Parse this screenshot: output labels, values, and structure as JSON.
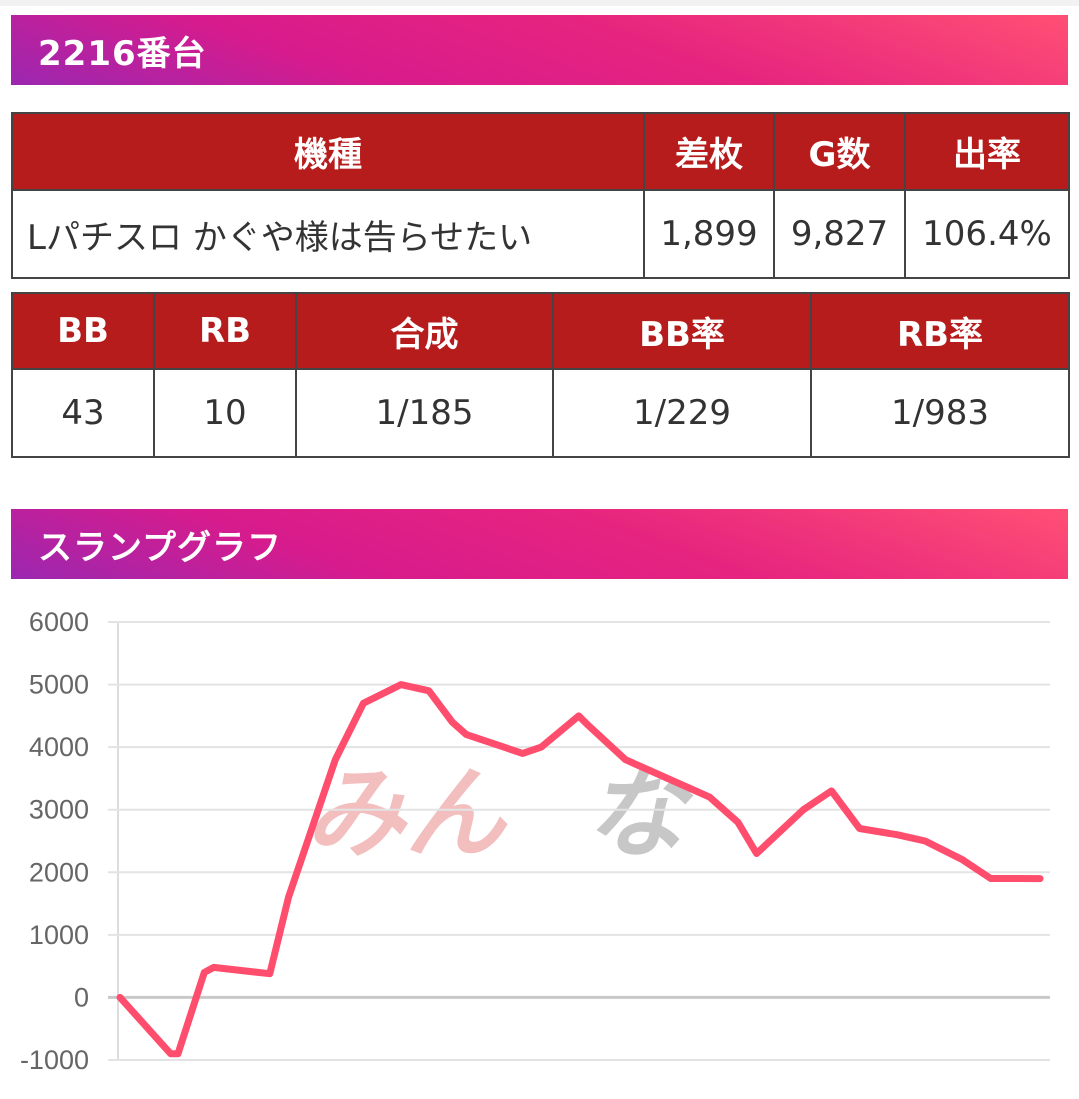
{
  "machine_section": {
    "title": "2216番台"
  },
  "summary_table": {
    "headers": [
      "機種",
      "差枚",
      "G数",
      "出率"
    ],
    "row": [
      "Lパチスロ かぐや様は告らせたい",
      "1,899",
      "9,827",
      "106.4%"
    ]
  },
  "bonus_table": {
    "headers": [
      "BB",
      "RB",
      "合成",
      "BB率",
      "RB率"
    ],
    "row": [
      "43",
      "10",
      "1/185",
      "1/229",
      "1/983"
    ]
  },
  "graph_section": {
    "title": "スランプグラフ",
    "watermark_left": "みん",
    "watermark_right": "な",
    "line_color": "#ff4d6d"
  },
  "chart_data": {
    "type": "line",
    "title": "",
    "xlabel": "",
    "ylabel": "",
    "ylim": [
      -1000,
      6000
    ],
    "yticks": [
      "6000",
      "5000",
      "4000",
      "3000",
      "2000",
      "1000",
      "0",
      "-1000"
    ],
    "grid": true,
    "series": [
      {
        "x": [
          0,
          540,
          620,
          900,
          1000,
          1600,
          1800,
          2300,
          2600,
          3000,
          3300,
          3550,
          3700,
          4300,
          4500,
          4900,
          5000,
          5400,
          6300,
          6600,
          6800,
          7300,
          7600,
          7900,
          8300,
          8600,
          9000,
          9300,
          9600,
          9827
        ],
        "y": [
          0,
          -900,
          -900,
          400,
          480,
          380,
          1600,
          3800,
          4700,
          5000,
          4900,
          4400,
          4200,
          3900,
          4000,
          4500,
          4350,
          3800,
          3200,
          2800,
          2300,
          3000,
          3300,
          2700,
          2600,
          2500,
          2200,
          1900,
          1900,
          1899
        ]
      }
    ]
  }
}
